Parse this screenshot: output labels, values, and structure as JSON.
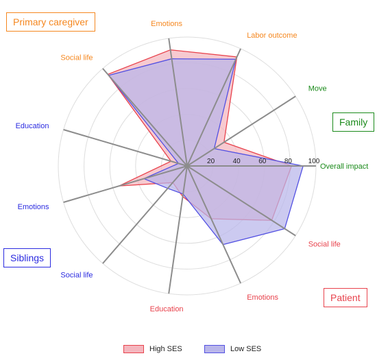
{
  "chart_data": {
    "type": "radar",
    "rlim": [
      0,
      100
    ],
    "radial_ticks": [
      "20",
      "40",
      "60",
      "80",
      "100"
    ],
    "grid": true,
    "legend_placement": "bottom-center",
    "axes": [
      {
        "label": "Overall impact",
        "group": "Family"
      },
      {
        "label": "Move",
        "group": "Family"
      },
      {
        "label": "Labor outcome",
        "group": "Primary caregiver"
      },
      {
        "label": "Emotions",
        "group": "Primary caregiver"
      },
      {
        "label": "Social life",
        "group": "Primary caregiver"
      },
      {
        "label": "Education",
        "group": "Siblings"
      },
      {
        "label": "Emotions",
        "group": "Siblings"
      },
      {
        "label": "Social life",
        "group": "Siblings"
      },
      {
        "label": "Education",
        "group": "Patient"
      },
      {
        "label": "Emotions",
        "group": "Patient"
      },
      {
        "label": "Social life",
        "group": "Patient"
      }
    ],
    "series": [
      {
        "name": "High SES",
        "color": "#e8424c",
        "fill": "#f4b6be",
        "values": [
          81,
          34,
          93,
          91,
          94,
          13,
          55,
          17,
          24,
          45,
          78
        ]
      },
      {
        "name": "Low SES",
        "color": "#5250e2",
        "fill": "#b9b6ea",
        "values": [
          90,
          25,
          91,
          84,
          93,
          7,
          35,
          23,
          22,
          67,
          90
        ]
      }
    ]
  },
  "groups": [
    {
      "name": "Primary caregiver",
      "color": "#f5871f"
    },
    {
      "name": "Family",
      "color": "#1a8a1a"
    },
    {
      "name": "Siblings",
      "color": "#2a2ae0"
    },
    {
      "name": "Patient",
      "color": "#e8424c"
    }
  ]
}
